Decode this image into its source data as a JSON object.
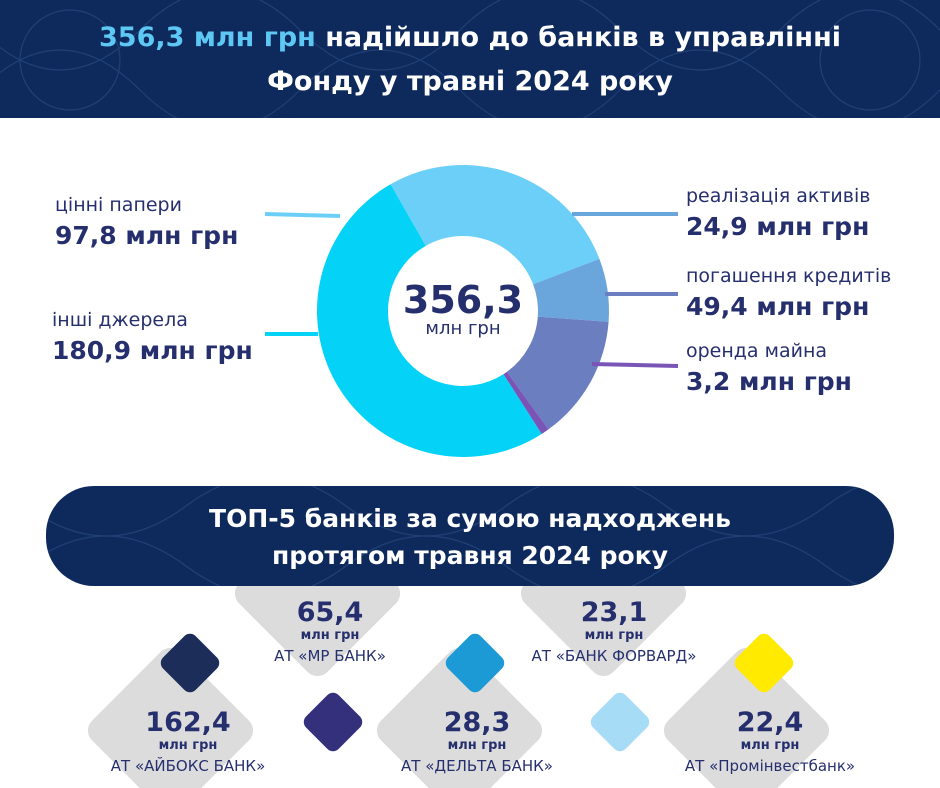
{
  "header": {
    "title_accent": "356,3 млн грн",
    "title_line1_rest": " надійшло до банків в управлінні",
    "title_line2": "Фонду у травні 2024 року"
  },
  "donut": {
    "center_value": "356,3",
    "center_unit": "млн грн"
  },
  "chart_data": {
    "type": "pie",
    "title": "356,3 млн грн надійшло до банків в управлінні Фонду у травні 2024 року",
    "total": 356.3,
    "unit": "млн грн",
    "slices": [
      {
        "label": "цінні папери",
        "value": 97.8,
        "value_text": "97,8 млн грн",
        "color": "#6ccff8"
      },
      {
        "label": "реалізація активів",
        "value": 24.9,
        "value_text": "24,9 млн грн",
        "color": "#6aa6dc"
      },
      {
        "label": "погашення кредитів",
        "value": 49.4,
        "value_text": "49,4 млн грн",
        "color": "#6b7ec0"
      },
      {
        "label": "оренда майна",
        "value": 3.2,
        "value_text": "3,2 млн грн",
        "color": "#7b55b6"
      },
      {
        "label": "інші джерела",
        "value": 180.9,
        "value_text": "180,9 млн грн",
        "color": "#04d2f6"
      }
    ]
  },
  "top5": {
    "title_line1": "ТОП-5 банків за сумою надходжень",
    "title_line2": "протягом травня 2024 року",
    "unit": "млн грн",
    "banks": [
      {
        "value": "162,4",
        "name": "АТ «АЙБОКС БАНК»",
        "color": "#1c2d5a"
      },
      {
        "value": "65,4",
        "name": "АТ «МР БАНК»",
        "color": "#35307c"
      },
      {
        "value": "28,3",
        "name": "АТ «ДЕЛЬТА БАНК»",
        "color": "#1b9ad6"
      },
      {
        "value": "23,1",
        "name": "АТ «БАНК ФОРВАРД»",
        "color": "#a6dcf6"
      },
      {
        "value": "22,4",
        "name": "АТ «Промінвестбанк»",
        "color": "#ffea00"
      }
    ]
  }
}
